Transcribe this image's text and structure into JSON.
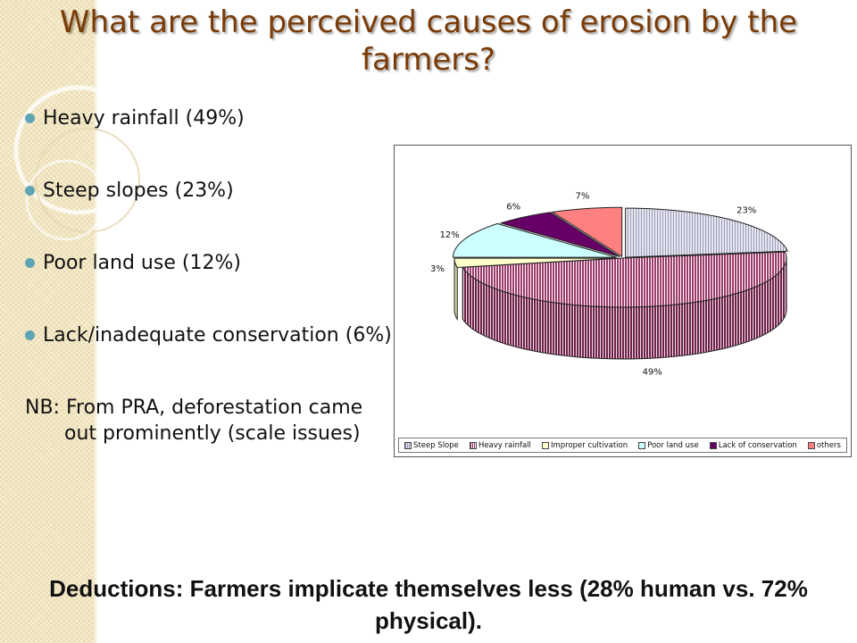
{
  "title": {
    "line1": "What are the perceived causes of erosion by the",
    "line2": "farmers?"
  },
  "bullets": [
    "Heavy rainfall (49%)",
    "Steep slopes (23%)",
    "Poor land use (12%)",
    "Lack/inadequate conservation (6%)"
  ],
  "note": "NB: From PRA, deforestation came out prominently (scale issues)",
  "deductions": "Deductions: Farmers implicate themselves less (28% human vs. 72% physical).",
  "chart_data": {
    "type": "pie",
    "style": "3d-exploded",
    "legend_position": "bottom",
    "categories": [
      "Steep Slope",
      "Heavy rainfall",
      "Improper cultivation",
      "Poor land use",
      "Lack of conservation",
      "others"
    ],
    "values": [
      23,
      49,
      3,
      12,
      6,
      7
    ],
    "labels": [
      "23%",
      "49%",
      "3%",
      "12%",
      "6%",
      "7%"
    ],
    "colors": [
      "#d9d9ea",
      "#9a3b6b",
      "#ffffcc",
      "#ccffff",
      "#660066",
      "#ff8080"
    ]
  }
}
